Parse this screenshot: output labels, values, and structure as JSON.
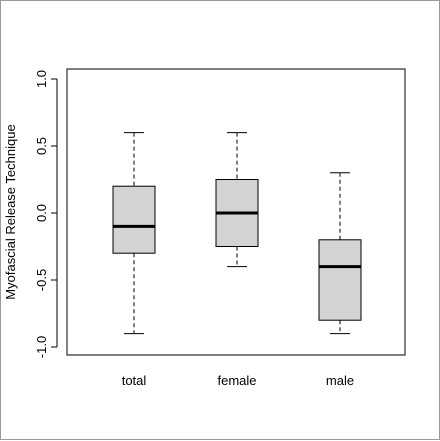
{
  "chart_data": {
    "type": "boxplot",
    "title": "",
    "xlabel": "",
    "ylabel": "Myofascial Release Technique",
    "ylim": [
      -1.0,
      1.0
    ],
    "yticks": [
      1.0,
      0.5,
      0.0,
      -0.5,
      -1.0
    ],
    "ytick_labels": [
      "1.0",
      "0.5",
      "0.0",
      "-0.5",
      "-1.0"
    ],
    "categories": [
      "total",
      "female",
      "male"
    ],
    "boxes": [
      {
        "category": "total",
        "whisker_low": -0.9,
        "q1": -0.3,
        "median": -0.1,
        "q3": 0.2,
        "whisker_high": 0.6
      },
      {
        "category": "female",
        "whisker_low": -0.4,
        "q1": -0.25,
        "median": 0.0,
        "q3": 0.25,
        "whisker_high": 0.6
      },
      {
        "category": "male",
        "whisker_low": -0.9,
        "q1": -0.8,
        "median": -0.4,
        "q3": -0.2,
        "whisker_high": 0.3
      }
    ],
    "box_fill": "#d3d3d3",
    "line_color": "#000000",
    "grid": false
  }
}
